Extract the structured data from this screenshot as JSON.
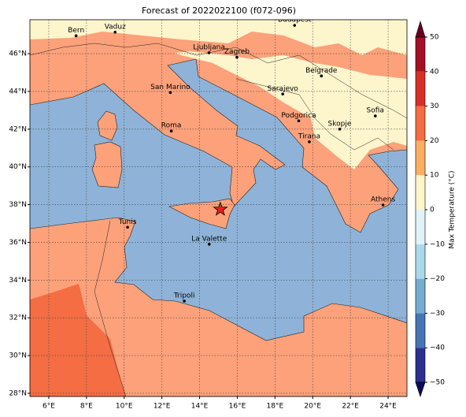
{
  "title": "Forecast of 2022022100 (f072-096)",
  "map": {
    "lonlim": [
      5,
      25
    ],
    "latlim": [
      27.83,
      47.8
    ],
    "lonticks": [
      {
        "value": 6,
        "label": "6°E"
      },
      {
        "value": 8,
        "label": "8°E"
      },
      {
        "value": 10,
        "label": "10°E"
      },
      {
        "value": 12,
        "label": "12°E"
      },
      {
        "value": 14,
        "label": "14°E"
      },
      {
        "value": 16,
        "label": "16°E"
      },
      {
        "value": 18,
        "label": "18°E"
      },
      {
        "value": 20,
        "label": "20°E"
      },
      {
        "value": 22,
        "label": "22°E"
      },
      {
        "value": 24,
        "label": "24°E"
      }
    ],
    "latticks": [
      {
        "value": 28,
        "label": "28°N"
      },
      {
        "value": 30,
        "label": "30°N"
      },
      {
        "value": 32,
        "label": "32°N"
      },
      {
        "value": 34,
        "label": "34°N"
      },
      {
        "value": 36,
        "label": "36°N"
      },
      {
        "value": 38,
        "label": "38°N"
      },
      {
        "value": 40,
        "label": "40°N"
      },
      {
        "value": 42,
        "label": "42°N"
      },
      {
        "value": 44,
        "label": "44°N"
      },
      {
        "value": 46,
        "label": "46°N"
      }
    ],
    "grid": true
  },
  "cities": [
    {
      "name": "Bern",
      "lon": 7.45,
      "lat": 46.95
    },
    {
      "name": "Vaduz",
      "lon": 9.52,
      "lat": 47.14
    },
    {
      "name": "Budapest",
      "lon": 19.04,
      "lat": 47.5
    },
    {
      "name": "Ljubljana",
      "lon": 14.5,
      "lat": 46.05
    },
    {
      "name": "Zagreb",
      "lon": 15.98,
      "lat": 45.81
    },
    {
      "name": "Belgrade",
      "lon": 20.46,
      "lat": 44.82
    },
    {
      "name": "San Marino",
      "lon": 12.45,
      "lat": 43.94
    },
    {
      "name": "Sarajevo",
      "lon": 18.41,
      "lat": 43.86
    },
    {
      "name": "Sofia",
      "lon": 23.32,
      "lat": 42.7
    },
    {
      "name": "Podgorica",
      "lon": 19.26,
      "lat": 42.44
    },
    {
      "name": "Skopje",
      "lon": 21.43,
      "lat": 42.0
    },
    {
      "name": "Roma",
      "lon": 12.5,
      "lat": 41.9
    },
    {
      "name": "Tirana",
      "lon": 19.82,
      "lat": 41.33
    },
    {
      "name": "Athens",
      "lon": 23.73,
      "lat": 37.98
    },
    {
      "name": "Tunis",
      "lon": 10.18,
      "lat": 36.8
    },
    {
      "name": "La Valette",
      "lon": 14.51,
      "lat": 35.9
    },
    {
      "name": "Tripoli",
      "lon": 13.19,
      "lat": 32.89
    }
  ],
  "marker": {
    "lon": 15.1,
    "lat": 37.75,
    "color": "#e8201c"
  },
  "colorbar": {
    "label": "Max Temperature (°C)",
    "ticks": [
      {
        "value": -50,
        "label": "−50"
      },
      {
        "value": -40,
        "label": "−40"
      },
      {
        "value": -30,
        "label": "−30"
      },
      {
        "value": -20,
        "label": "−20"
      },
      {
        "value": -10,
        "label": "−10"
      },
      0,
      10,
      20,
      30,
      40,
      50
    ],
    "colors": [
      "#2c2f8f",
      "#4575b4",
      "#74add1",
      "#abd9e9",
      "#e0f3f8",
      "#fef5cb",
      "#fdae61",
      "#f46d43",
      "#d73027",
      "#a50f26"
    ],
    "extend_colors": [
      "#0b0b5a",
      "#67001f"
    ]
  }
}
